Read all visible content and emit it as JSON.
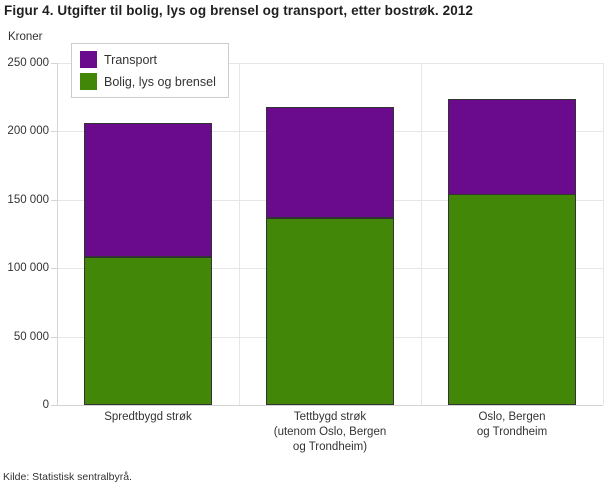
{
  "title": "Figur 4. Utgifter til bolig, lys og brensel og transport, etter bostrøk. 2012",
  "source": "Kilde: Statistisk sentralbyrå.",
  "colors": {
    "transport": "#6a0a8d",
    "bolig": "#428708",
    "grid": "#e6e6e6",
    "axis": "#d4d4d4",
    "bar_border": "#333333",
    "legend_border": "#cccccc",
    "text": "#333333"
  },
  "chart_data": {
    "type": "bar",
    "stacked": true,
    "title": "Figur 4. Utgifter til bolig, lys og brensel og transport, etter bostrøk. 2012",
    "ylabel": "Kroner",
    "xlabel": "",
    "ylim": [
      0,
      250000
    ],
    "yticks": [
      0,
      50000,
      100000,
      150000,
      200000,
      250000
    ],
    "ytick_labels": [
      "0",
      "50 000",
      "100 000",
      "150 000",
      "200 000",
      "250 000"
    ],
    "grid": true,
    "legend_position": "top-left",
    "categories": [
      "Spredtbygd strøk",
      "Tettbygd strøk (utenom Oslo, Bergen og Trondheim)",
      "Oslo, Bergen og Trondheim"
    ],
    "category_lines": [
      [
        "Spredtbygd strøk"
      ],
      [
        "Tettbygd strøk",
        "(utenom Oslo, Bergen",
        "og Trondheim)"
      ],
      [
        "Oslo, Bergen",
        "og Trondheim"
      ]
    ],
    "series": [
      {
        "name": "Transport",
        "color": "#6a0a8d",
        "values": [
          98000,
          81000,
          70000
        ]
      },
      {
        "name": "Bolig, lys og brensel",
        "color": "#428708",
        "values": [
          108000,
          137000,
          154000
        ]
      }
    ]
  }
}
